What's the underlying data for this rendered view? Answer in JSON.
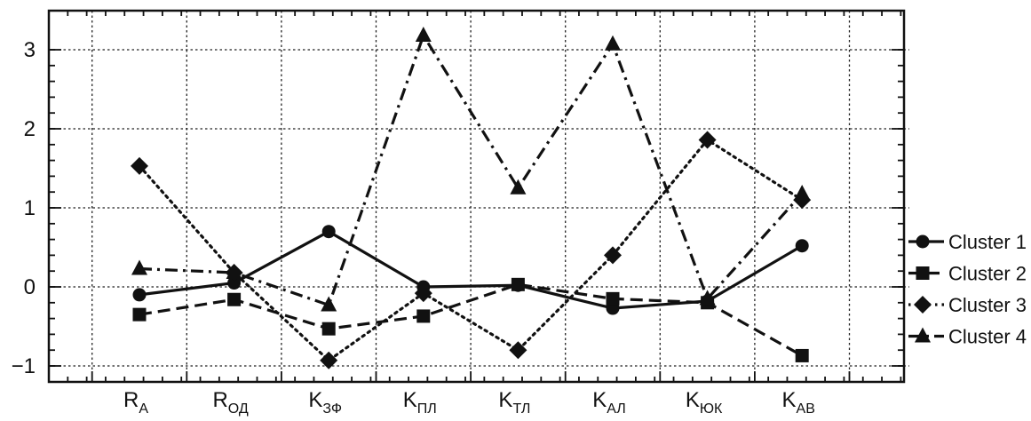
{
  "chart_data": {
    "type": "line",
    "categories": [
      {
        "main": "R",
        "sub": "А"
      },
      {
        "main": "R",
        "sub": "ОД"
      },
      {
        "main": "K",
        "sub": "ЗФ"
      },
      {
        "main": "K",
        "sub": "ПЛ"
      },
      {
        "main": "K",
        "sub": "ТЛ"
      },
      {
        "main": "K",
        "sub": "АЛ"
      },
      {
        "main": "K",
        "sub": "ЮК"
      },
      {
        "main": "K",
        "sub": "АВ"
      }
    ],
    "yticks": [
      {
        "value": 3,
        "label": "3"
      },
      {
        "value": 2,
        "label": "2"
      },
      {
        "value": 1,
        "label": "1"
      },
      {
        "value": 0,
        "label": "0"
      },
      {
        "value": -1,
        "label": "−1"
      }
    ],
    "ylim": [
      -1.2,
      3.5
    ],
    "grid": true,
    "legend_position": "right",
    "series": [
      {
        "name": "Cluster 1",
        "marker": "circle",
        "dash": "solid",
        "values": [
          -0.1,
          0.05,
          0.7,
          0.0,
          0.02,
          -0.27,
          -0.18,
          0.52
        ]
      },
      {
        "name": "Cluster 2",
        "marker": "square",
        "dash": "dashed",
        "values": [
          -0.35,
          -0.16,
          -0.53,
          -0.37,
          0.03,
          -0.15,
          -0.2,
          -0.87
        ]
      },
      {
        "name": "Cluster 3",
        "marker": "diamond",
        "dash": "dotted",
        "values": [
          1.53,
          0.18,
          -0.93,
          -0.08,
          -0.8,
          0.4,
          1.86,
          1.1
        ]
      },
      {
        "name": "Cluster 4",
        "marker": "triangle",
        "dash": "dashdot",
        "values": [
          0.23,
          0.18,
          -0.23,
          3.18,
          1.25,
          3.07,
          -0.15,
          1.18
        ]
      }
    ]
  }
}
